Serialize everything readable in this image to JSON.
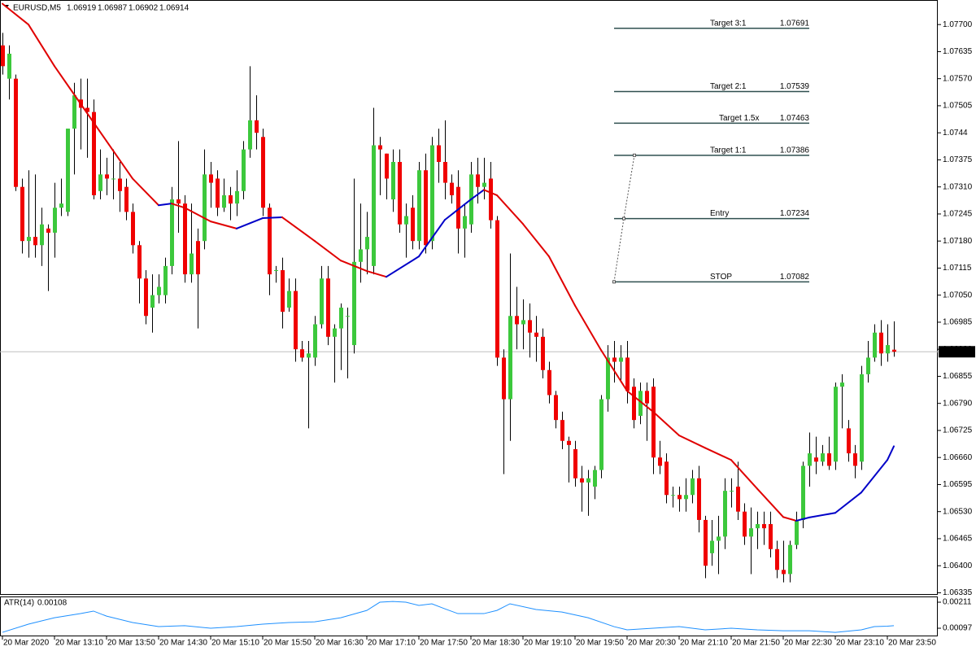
{
  "chart_data": [
    {
      "type": "candlestick",
      "symbol": "EURUSD,M5",
      "categories": [
        "20 Mar 2020",
        null,
        null,
        null,
        null,
        null,
        null,
        null,
        "20 Mar 13:10",
        null,
        null,
        null,
        null,
        null,
        null,
        null,
        "20 Mar 13:50",
        null,
        null,
        null,
        null,
        null,
        null,
        null,
        "20 Mar 14:30",
        null,
        null,
        null,
        null,
        null,
        null,
        null,
        "20 Mar 15:10",
        null,
        null,
        null,
        null,
        null,
        null,
        null,
        "20 Mar 15:50",
        null,
        null,
        null,
        null,
        null,
        null,
        null,
        "20 Mar 16:30",
        null,
        null,
        null,
        null,
        null,
        null,
        null,
        "20 Mar 17:10",
        null,
        null,
        null,
        null,
        null,
        null,
        null,
        "20 Mar 17:50",
        null,
        null,
        null,
        null,
        null,
        null,
        null,
        "20 Mar 18:30",
        null,
        null,
        null,
        null,
        null,
        null,
        null,
        "20 Mar 19:10",
        null,
        null,
        null,
        null,
        null,
        null,
        null,
        "20 Mar 19:50",
        null,
        null,
        null,
        null,
        null,
        null,
        null,
        "20 Mar 20:30",
        null,
        null,
        null,
        null,
        null,
        null,
        null,
        "20 Mar 21:10",
        null,
        null,
        null,
        null,
        null,
        null,
        null,
        "20 Mar 21:50",
        null,
        null,
        null,
        null,
        null,
        null,
        null,
        "20 Mar 22:30",
        null,
        null,
        null,
        null,
        null,
        null,
        null,
        "20 Mar 23:10",
        null,
        null,
        null,
        null,
        null,
        null,
        null,
        "20 Mar 23:50",
        null
      ],
      "ohlc": [
        [
          1.0765,
          1.0768,
          1.0758,
          1.076
        ],
        [
          1.0757,
          1.0765,
          1.0752,
          1.0763
        ],
        [
          1.0757,
          1.0758,
          1.073,
          1.0731
        ],
        [
          1.0731,
          1.0733,
          1.0715,
          1.0718
        ],
        [
          1.0718,
          1.0735,
          1.0714,
          1.0719
        ],
        [
          1.0719,
          1.0734,
          1.0714,
          1.0717
        ],
        [
          1.0717,
          1.0726,
          1.0712,
          1.0722
        ],
        [
          1.0721,
          1.0722,
          1.0706,
          1.072
        ],
        [
          1.072,
          1.0732,
          1.0714,
          1.0726
        ],
        [
          1.0726,
          1.0733,
          1.0724,
          1.0727
        ],
        [
          1.0725,
          1.0745,
          1.0724,
          1.0745
        ],
        [
          1.0745,
          1.0756,
          1.0734,
          1.0753
        ],
        [
          1.0752,
          1.0757,
          1.074,
          1.075
        ],
        [
          1.075,
          1.0757,
          1.0738,
          1.0749
        ],
        [
          1.0749,
          1.0752,
          1.0728,
          1.0729
        ],
        [
          1.073,
          1.074,
          1.0728,
          1.0734
        ],
        [
          1.0734,
          1.0738,
          1.0729,
          1.0733
        ],
        [
          1.0733,
          1.074,
          1.0728,
          1.0733
        ],
        [
          1.0733,
          1.0737,
          1.0725,
          1.073
        ],
        [
          1.0731,
          1.0733,
          1.0723,
          1.0725
        ],
        [
          1.0725,
          1.0727,
          1.0715,
          1.0717
        ],
        [
          1.0717,
          1.0718,
          1.0703,
          1.0709
        ],
        [
          1.0709,
          1.0711,
          1.0698,
          1.07
        ],
        [
          1.0702,
          1.071,
          1.0696,
          1.0705
        ],
        [
          1.0705,
          1.071,
          1.0703,
          1.0707
        ],
        [
          1.0705,
          1.0714,
          1.0703,
          1.0712
        ],
        [
          1.0712,
          1.0731,
          1.071,
          1.0728
        ],
        [
          1.0728,
          1.0742,
          1.072,
          1.0727
        ],
        [
          1.0727,
          1.0729,
          1.0708,
          1.071
        ],
        [
          1.071,
          1.0727,
          1.0708,
          1.0715
        ],
        [
          1.0718,
          1.0721,
          1.0697,
          1.071
        ],
        [
          1.0718,
          1.074,
          1.0716,
          1.0734
        ],
        [
          1.0734,
          1.0737,
          1.0726,
          1.0732
        ],
        [
          1.0733,
          1.0735,
          1.0724,
          1.0726
        ],
        [
          1.0726,
          1.0733,
          1.0725,
          1.0729
        ],
        [
          1.0729,
          1.0731,
          1.0723,
          1.0727
        ],
        [
          1.0727,
          1.0735,
          1.0724,
          1.073
        ],
        [
          1.073,
          1.0742,
          1.0728,
          1.074
        ],
        [
          1.074,
          1.076,
          1.0738,
          1.0747
        ],
        [
          1.0747,
          1.0753,
          1.074,
          1.0744
        ],
        [
          1.0743,
          1.0745,
          1.0724,
          1.0726
        ],
        [
          1.0726,
          1.0727,
          1.0705,
          1.071
        ],
        [
          1.0711,
          1.0712,
          1.0708,
          1.0711
        ],
        [
          1.0711,
          1.0714,
          1.0697,
          1.0701
        ],
        [
          1.0702,
          1.0709,
          1.0701,
          1.0706
        ],
        [
          1.0706,
          1.0709,
          1.0689,
          1.0692
        ],
        [
          1.0692,
          1.0694,
          1.0689,
          1.069
        ],
        [
          1.069,
          1.0694,
          1.0673,
          1.0691
        ],
        [
          1.069,
          1.07,
          1.0688,
          1.0698
        ],
        [
          1.0698,
          1.0712,
          1.0697,
          1.0709
        ],
        [
          1.0709,
          1.0712,
          1.0693,
          1.0695
        ],
        [
          1.0695,
          1.0698,
          1.0684,
          1.0697
        ],
        [
          1.0697,
          1.0703,
          1.0687,
          1.0702
        ],
        [
          1.07,
          1.0702,
          1.0685,
          1.07
        ],
        [
          1.0693,
          1.0733,
          1.0691,
          1.0713
        ],
        [
          1.0713,
          1.0727,
          1.0708,
          1.0716
        ],
        [
          1.0716,
          1.0725,
          1.071,
          1.0719
        ],
        [
          1.0712,
          1.075,
          1.071,
          1.0741
        ],
        [
          1.0741,
          1.0743,
          1.0729,
          1.074
        ],
        [
          1.0739,
          1.0739,
          1.0728,
          1.0733
        ],
        [
          1.0728,
          1.074,
          1.0725,
          1.0737
        ],
        [
          1.0737,
          1.074,
          1.072,
          1.0722
        ],
        [
          1.0722,
          1.0727,
          1.0714,
          1.0724
        ],
        [
          1.0726,
          1.0729,
          1.0716,
          1.0718
        ],
        [
          1.0718,
          1.0737,
          1.0716,
          1.0735
        ],
        [
          1.0735,
          1.0739,
          1.0715,
          1.0717
        ],
        [
          1.0718,
          1.0743,
          1.0716,
          1.0741
        ],
        [
          1.0741,
          1.0745,
          1.0732,
          1.0737
        ],
        [
          1.0737,
          1.0747,
          1.0728,
          1.0732
        ],
        [
          1.0732,
          1.0734,
          1.0727,
          1.0729
        ],
        [
          1.0731,
          1.0735,
          1.0715,
          1.0721
        ],
        [
          1.0721,
          1.0727,
          1.0714,
          1.0724
        ],
        [
          1.0722,
          1.0737,
          1.072,
          1.0734
        ],
        [
          1.0734,
          1.0738,
          1.0727,
          1.0731
        ],
        [
          1.0731,
          1.0738,
          1.0728,
          1.0732
        ],
        [
          1.0733,
          1.0737,
          1.0721,
          1.0723
        ],
        [
          1.0723,
          1.0724,
          1.0688,
          1.069
        ],
        [
          1.069,
          1.0692,
          1.0662,
          1.068
        ],
        [
          1.068,
          1.0715,
          1.067,
          1.07
        ],
        [
          1.07,
          1.0707,
          1.0692,
          1.0698
        ],
        [
          1.0698,
          1.0704,
          1.0692,
          1.0699
        ],
        [
          1.0699,
          1.0703,
          1.069,
          1.0696
        ],
        [
          1.0696,
          1.07,
          1.0689,
          1.0695
        ],
        [
          1.0695,
          1.0697,
          1.0685,
          1.0687
        ],
        [
          1.0687,
          1.0689,
          1.0679,
          1.0681
        ],
        [
          1.0681,
          1.0682,
          1.0673,
          1.0675
        ],
        [
          1.0675,
          1.0677,
          1.0668,
          1.067
        ],
        [
          1.067,
          1.0671,
          1.066,
          1.0669
        ],
        [
          1.0668,
          1.067,
          1.0659,
          1.0661
        ],
        [
          1.0661,
          1.0664,
          1.0653,
          1.066
        ],
        [
          1.066,
          1.0663,
          1.0652,
          1.0661
        ],
        [
          1.0659,
          1.0664,
          1.0656,
          1.0663
        ],
        [
          1.0663,
          1.0681,
          1.0661,
          1.068
        ],
        [
          1.068,
          1.0693,
          1.0677,
          1.069
        ],
        [
          1.069,
          1.0694,
          1.0684,
          1.0689
        ],
        [
          1.0689,
          1.0693,
          1.0684,
          1.069
        ],
        [
          1.069,
          1.0694,
          1.0679,
          1.0682
        ],
        [
          1.0683,
          1.0685,
          1.0673,
          1.0675
        ],
        [
          1.0676,
          1.0684,
          1.0674,
          1.0682
        ],
        [
          1.0682,
          1.0684,
          1.067,
          1.0679
        ],
        [
          1.0683,
          1.0685,
          1.0662,
          1.0666
        ],
        [
          1.0666,
          1.067,
          1.0662,
          1.0664
        ],
        [
          1.0665,
          1.0667,
          1.0655,
          1.0657
        ],
        [
          1.0657,
          1.0659,
          1.0654,
          1.0657
        ],
        [
          1.0657,
          1.0659,
          1.0653,
          1.0656
        ],
        [
          1.0656,
          1.0661,
          1.0653,
          1.0657
        ],
        [
          1.0657,
          1.0663,
          1.0655,
          1.0661
        ],
        [
          1.0661,
          1.0664,
          1.0648,
          1.0651
        ],
        [
          1.0651,
          1.0652,
          1.0637,
          1.064
        ],
        [
          1.0643,
          1.0651,
          1.064,
          1.0646
        ],
        [
          1.0646,
          1.0652,
          1.0638,
          1.0647
        ],
        [
          1.0647,
          1.0661,
          1.0644,
          1.0658
        ],
        [
          1.0658,
          1.0661,
          1.0654,
          1.0658
        ],
        [
          1.0659,
          1.0665,
          1.0651,
          1.0653
        ],
        [
          1.0653,
          1.0655,
          1.0645,
          1.0647
        ],
        [
          1.0647,
          1.0654,
          1.0638,
          1.0649
        ],
        [
          1.0649,
          1.0653,
          1.0644,
          1.065
        ],
        [
          1.065,
          1.0653,
          1.0645,
          1.0649
        ],
        [
          1.065,
          1.0653,
          1.0642,
          1.0644
        ],
        [
          1.0644,
          1.0646,
          1.0637,
          1.0639
        ],
        [
          1.0639,
          1.0646,
          1.0636,
          1.0638
        ],
        [
          1.0638,
          1.0646,
          1.0636,
          1.0645
        ],
        [
          1.0645,
          1.0653,
          1.0644,
          1.0651
        ],
        [
          1.0651,
          1.0665,
          1.0649,
          1.0664
        ],
        [
          1.0664,
          1.0672,
          1.0659,
          1.0667
        ],
        [
          1.0666,
          1.0671,
          1.0662,
          1.0665
        ],
        [
          1.0665,
          1.0669,
          1.0664,
          1.0667
        ],
        [
          1.0667,
          1.0671,
          1.0663,
          1.0664
        ],
        [
          1.0665,
          1.0684,
          1.0663,
          1.0683
        ],
        [
          1.0683,
          1.0686,
          1.0673,
          1.0684
        ],
        [
          1.0673,
          1.0675,
          1.0665,
          1.0667
        ],
        [
          1.0667,
          1.0669,
          1.0661,
          1.0664
        ],
        [
          1.0665,
          1.0688,
          1.0663,
          1.0686
        ],
        [
          1.0686,
          1.0694,
          1.0684,
          1.069
        ],
        [
          1.069,
          1.0698,
          1.0689,
          1.0696
        ],
        [
          1.0696,
          1.0699,
          1.0688,
          1.0691
        ],
        [
          1.0691,
          1.0698,
          1.0689,
          1.0693
        ],
        [
          1.06919,
          1.06987,
          1.06902,
          1.06914
        ]
      ],
      "up_color": "#3cc83c",
      "down_color": "#f00000",
      "wick_color": "#000000",
      "ylim": [
        1.06332,
        1.07759
      ],
      "yticks": [
        {
          "value": 1.077,
          "label": "1.07700"
        },
        1.07635,
        {
          "value": 1.0757,
          "label": "1.07570"
        },
        1.07505,
        1.0744,
        1.07375,
        {
          "value": 1.0731,
          "label": "1.07310"
        },
        1.07245,
        {
          "value": 1.0718,
          "label": "1.07180"
        },
        1.07115,
        {
          "value": 1.0705,
          "label": "1.07050"
        },
        1.06985,
        {
          "value": 1.0692,
          "label": "1.06920"
        },
        1.06855,
        {
          "value": 1.0679,
          "label": "1.06790"
        },
        1.06725,
        {
          "value": 1.0666,
          "label": "1.06660"
        },
        1.06595,
        {
          "value": 1.0653,
          "label": "1.06530"
        },
        1.06465,
        {
          "value": 1.064,
          "label": "1.06400"
        },
        1.06335
      ],
      "series": [
        {
          "x": [
            0,
            4,
            8,
            12,
            16,
            20,
            24,
            26,
            28,
            32,
            36,
            40,
            43,
            48,
            52,
            56,
            59,
            64,
            68,
            72,
            74,
            76,
            80,
            84,
            88,
            92,
            96,
            100,
            104,
            108,
            112,
            116,
            120,
            122,
            124,
            128,
            132,
            136,
            137
          ],
          "values": [
            1.0775,
            1.077,
            1.076,
            1.0751,
            1.0742,
            1.0733,
            1.07266,
            1.0727,
            1.0726,
            1.07227,
            1.0721,
            1.07235,
            1.07237,
            1.0718,
            1.07133,
            1.07108,
            1.07094,
            1.07143,
            1.07231,
            1.0728,
            1.07303,
            1.0729,
            1.07221,
            1.07143,
            1.07025,
            1.06918,
            1.0682,
            1.0677,
            1.06713,
            1.06683,
            1.06654,
            1.06585,
            1.06517,
            1.06508,
            1.06516,
            1.06527,
            1.06576,
            1.06654,
            1.06687
          ],
          "color_up": "#0000c8",
          "color_down": "#e00000"
        }
      ],
      "price_line_color": "#c0c0c0",
      "levels": [
        {
          "label": "Target 3:1",
          "value": 1.07691
        },
        {
          "label": "Target 2:1",
          "value": 1.07539
        },
        {
          "label": "Target 1.5x",
          "value": 1.07463
        },
        {
          "label": "Target 1:1",
          "value": 1.07386
        },
        {
          "label": "Entry",
          "value": 1.07234
        },
        {
          "label": "STOP",
          "value": 1.07082
        }
      ],
      "level_color": "#2f4f4f"
    },
    {
      "type": "line",
      "name": "ATR(14)",
      "x": [
        0,
        4,
        8,
        12,
        14,
        16,
        20,
        24,
        28,
        32,
        36,
        40,
        44,
        48,
        52,
        56,
        58,
        60,
        62,
        64,
        66,
        68,
        70,
        74,
        76,
        78,
        82,
        86,
        90,
        94,
        96,
        100,
        104,
        108,
        112,
        116,
        120,
        124,
        128,
        132,
        134,
        136,
        137
      ],
      "values": [
        0.00079,
        0.00115,
        0.00143,
        0.00161,
        0.00172,
        0.0015,
        0.00122,
        0.00104,
        0.00108,
        0.00097,
        0.00104,
        0.00115,
        0.00122,
        0.00125,
        0.00143,
        0.00175,
        0.00211,
        0.00214,
        0.00211,
        0.00197,
        0.00204,
        0.00182,
        0.00161,
        0.00161,
        0.00175,
        0.00204,
        0.00179,
        0.00168,
        0.00143,
        0.00104,
        0.0009,
        0.00097,
        0.00104,
        0.0009,
        0.00097,
        0.0009,
        0.00086,
        0.00086,
        0.00079,
        0.0009,
        0.00104,
        0.00106,
        0.00108
      ],
      "color": "#1e90ff",
      "ylim": [
        0.00065,
        0.00236
      ],
      "yticks": [
        0.00211,
        0.00097
      ]
    }
  ]
}
